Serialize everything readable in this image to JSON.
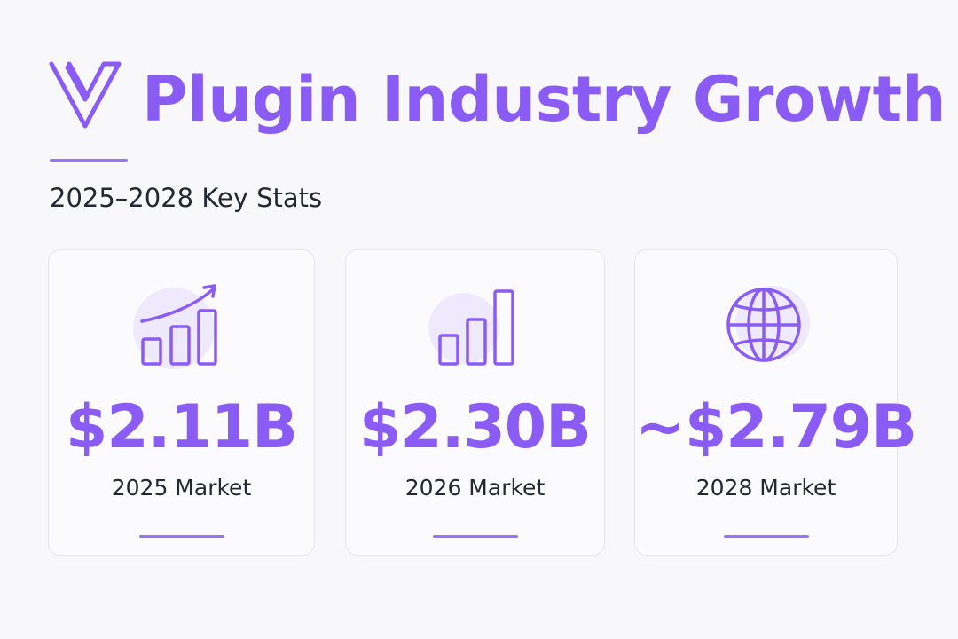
{
  "header": {
    "logo_icon": "v-logo-icon",
    "title": "Plugin Industry Growth",
    "subtitle": "2025–2028 Key Stats"
  },
  "colors": {
    "accent": "#8a5cf5",
    "accent_light": "#efe9fd",
    "text": "#232833",
    "background": "#f8f8fa"
  },
  "stats": [
    {
      "icon": "trending-bar-chart-icon",
      "value": "$2.11B",
      "label": "2025 Market"
    },
    {
      "icon": "bar-chart-icon",
      "value": "$2.30B",
      "label": "2026 Market"
    },
    {
      "icon": "globe-icon",
      "value": "~$2.79B",
      "label": "2028 Market"
    }
  ]
}
